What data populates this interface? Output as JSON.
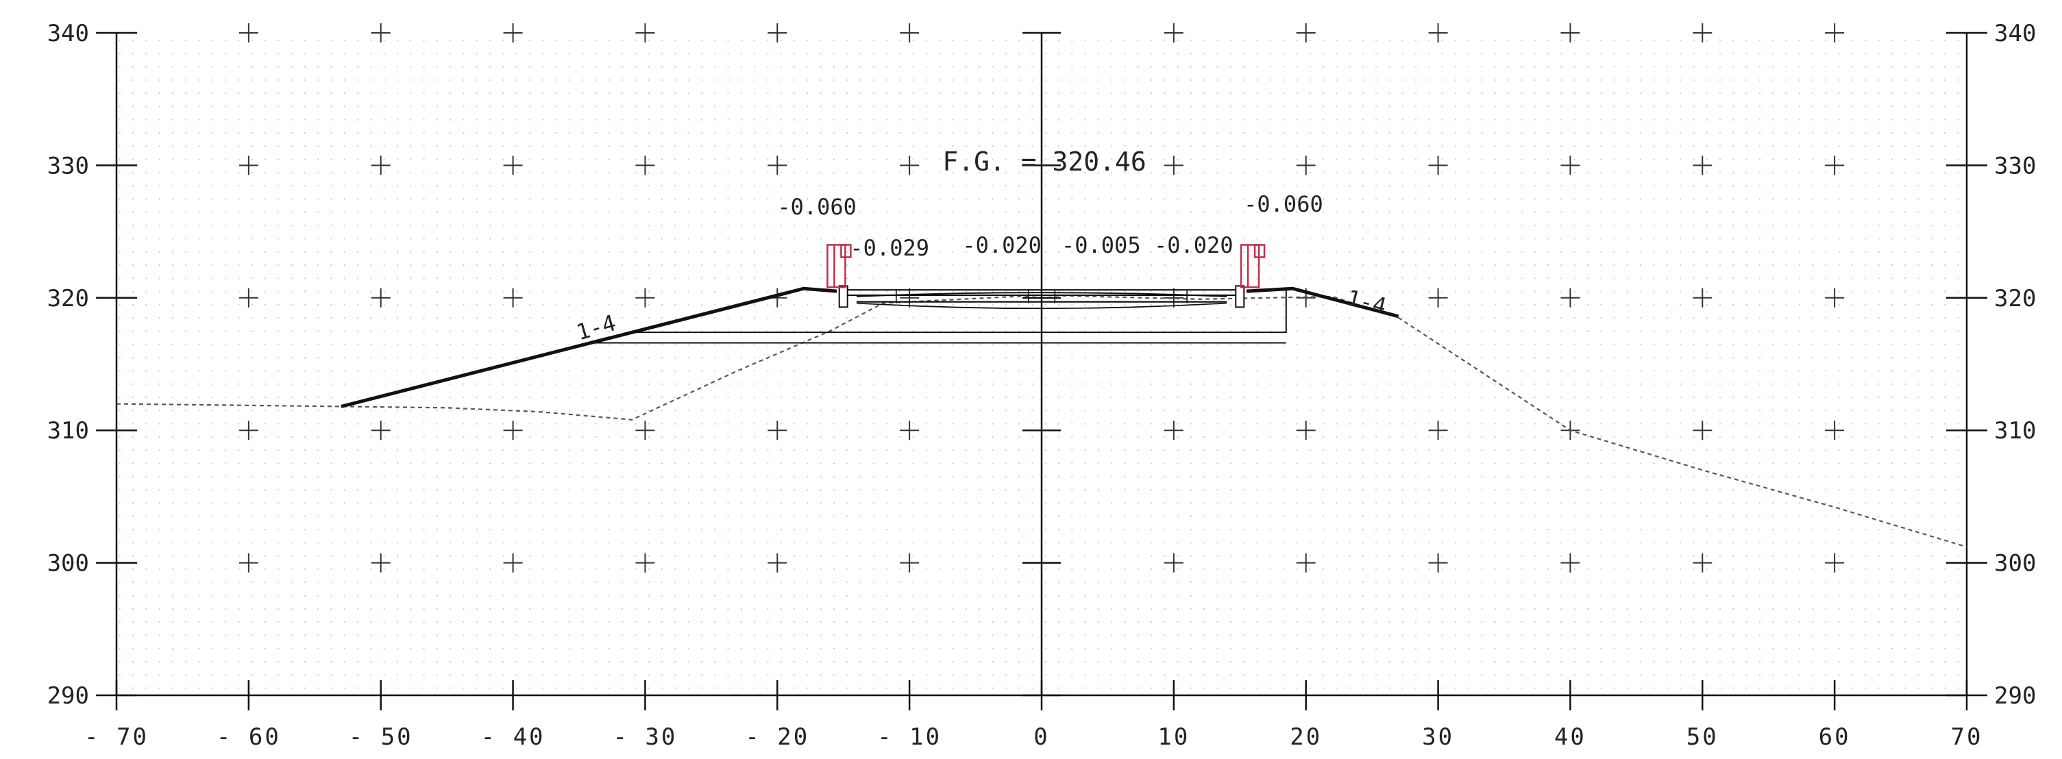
{
  "chart_data": {
    "type": "cross-section",
    "x_ticks": [
      -70,
      -60,
      -50,
      -40,
      -30,
      -20,
      -10,
      0,
      10,
      20,
      30,
      40,
      50,
      60,
      70
    ],
    "y_ticks": [
      290,
      300,
      310,
      320,
      330,
      340
    ],
    "xlim": [
      -70,
      70
    ],
    "ylim": [
      290,
      340
    ],
    "grid": "dotted with plus-markers",
    "existing_ground": [
      [
        -70,
        312.0
      ],
      [
        -53,
        311.8
      ],
      [
        -45,
        311.7
      ],
      [
        -38,
        311.4
      ],
      [
        -31,
        310.8
      ],
      [
        -23,
        314.5
      ],
      [
        -16,
        317.5
      ],
      [
        -12,
        319.6
      ],
      [
        0,
        320.2
      ],
      [
        12,
        319.9
      ],
      [
        22,
        320.1
      ],
      [
        27,
        318.5
      ],
      [
        40,
        310.0
      ],
      [
        50,
        307.0
      ],
      [
        60,
        304.2
      ],
      [
        70,
        301.2
      ]
    ],
    "proposed_left_slope": [
      [
        -53,
        311.8
      ],
      [
        -18,
        320.7
      ],
      [
        -15.5,
        320.5
      ]
    ],
    "proposed_right_slope": [
      [
        15.5,
        320.5
      ],
      [
        19,
        320.7
      ],
      [
        27,
        318.6
      ]
    ],
    "fg_label": "F.G. = 320.46",
    "slope_labels": [
      {
        "text": "1-4",
        "x": -35,
        "y": 316.8,
        "side": "left"
      },
      {
        "text": "1-4",
        "x": 23,
        "y": 319.5,
        "side": "right"
      }
    ],
    "slope_annotations": [
      {
        "text": "-0.060",
        "x": -17,
        "y": 326.3
      },
      {
        "text": "-0.029",
        "x": -11.5,
        "y": 323.2
      },
      {
        "text": "-0.020",
        "x": -3,
        "y": 323.4
      },
      {
        "text": "-0.005",
        "x": 4.5,
        "y": 323.4
      },
      {
        "text": "-0.020",
        "x": 11.5,
        "y": 323.4
      },
      {
        "text": "-0.060",
        "x": 18.3,
        "y": 326.5
      }
    ],
    "colors": {
      "existing_ground": "#555566",
      "proposed": "#111111",
      "railing": "#c0304a",
      "grid_dot": "#c8c8d8"
    }
  }
}
